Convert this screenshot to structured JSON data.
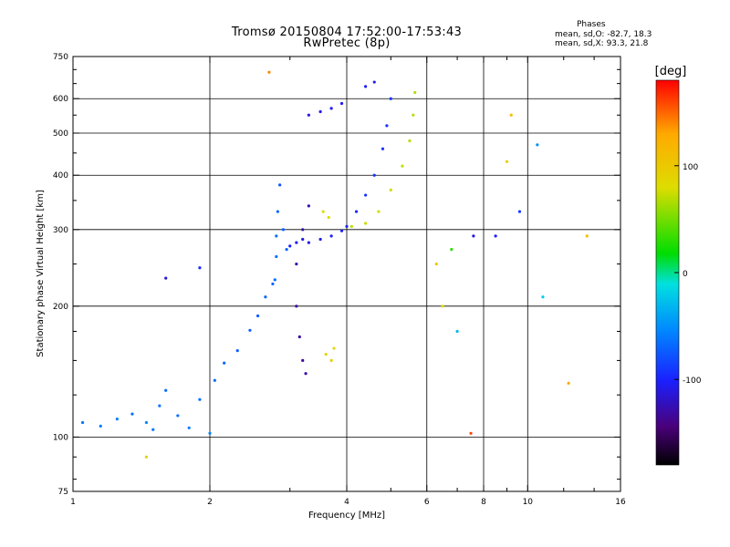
{
  "header": {
    "title_line1": "Tromsø 20150804 17:52:00-17:53:43",
    "title_line2": "RwPretec (8p)",
    "phases_heading": "Phases",
    "phases_o": "mean, sd,O: -82.7, 18.3",
    "phases_x": "mean, sd,X:  93.3, 21.8"
  },
  "colorbar": {
    "unit_label": "[deg]",
    "ticks": [
      {
        "value": 100,
        "label": "100"
      },
      {
        "value": 0,
        "label": "0"
      },
      {
        "value": -100,
        "label": "-100"
      }
    ],
    "range": [
      -180,
      180
    ]
  },
  "chart_data": {
    "type": "scatter",
    "title": "Tromsø 20150804 17:52:00-17:53:43",
    "subtitle": "RwPretec (8p)",
    "xlabel": "Frequency [MHz]",
    "ylabel": "Stationary phase Virtual Height [km]",
    "x_scale": "log",
    "y_scale": "log",
    "xlim": [
      1,
      16
    ],
    "ylim": [
      75,
      750
    ],
    "x_ticks": [
      {
        "value": 1,
        "label": "1"
      },
      {
        "value": 2,
        "label": "2"
      },
      {
        "value": 4,
        "label": "4"
      },
      {
        "value": 6,
        "label": "6"
      },
      {
        "value": 8,
        "label": "8"
      },
      {
        "value": 10,
        "label": "10"
      },
      {
        "value": 16,
        "label": "16"
      }
    ],
    "x_gridlines": [
      2,
      4,
      6,
      8,
      10
    ],
    "x_minor": [
      3,
      5,
      7,
      9,
      12,
      14
    ],
    "y_ticks": [
      {
        "value": 75,
        "label": "75"
      },
      {
        "value": 100,
        "label": "100"
      },
      {
        "value": 200,
        "label": "200"
      },
      {
        "value": 300,
        "label": "300"
      },
      {
        "value": 400,
        "label": "400"
      },
      {
        "value": 500,
        "label": "500"
      },
      {
        "value": 600,
        "label": "600"
      },
      {
        "value": 750,
        "label": "750"
      }
    ],
    "y_gridlines": [
      100,
      200,
      300,
      400,
      500,
      600
    ],
    "color_quantity": "phase [deg]",
    "series": [
      {
        "points": [
          [
            1.05,
            108,
            -62
          ],
          [
            1.15,
            106,
            -60
          ],
          [
            1.25,
            110,
            -58
          ],
          [
            1.35,
            113,
            -65
          ],
          [
            1.45,
            108,
            -55
          ],
          [
            1.5,
            104,
            -60
          ],
          [
            1.55,
            118,
            -62
          ],
          [
            1.6,
            128,
            -66
          ],
          [
            1.7,
            112,
            -64
          ],
          [
            1.8,
            105,
            -60
          ],
          [
            1.9,
            122,
            -64
          ],
          [
            2.0,
            102,
            -58
          ],
          [
            2.05,
            135,
            -66
          ],
          [
            2.15,
            148,
            -70
          ],
          [
            2.3,
            158,
            -72
          ],
          [
            2.45,
            176,
            -72
          ],
          [
            2.55,
            190,
            -74
          ],
          [
            2.65,
            210,
            -70
          ],
          [
            2.75,
            225,
            -72
          ]
        ]
      },
      {
        "points": [
          [
            2.78,
            230,
            -66
          ],
          [
            2.8,
            260,
            -64
          ],
          [
            2.8,
            290,
            -64
          ],
          [
            2.82,
            330,
            -70
          ],
          [
            2.85,
            380,
            -76
          ],
          [
            2.9,
            300,
            -72
          ],
          [
            2.95,
            270,
            -70
          ]
        ]
      },
      {
        "points": [
          [
            3.0,
            275,
            -100
          ],
          [
            3.1,
            280,
            -104
          ],
          [
            3.2,
            285,
            -110
          ],
          [
            3.3,
            280,
            -108
          ],
          [
            3.5,
            285,
            -106
          ],
          [
            3.7,
            290,
            -104
          ],
          [
            3.9,
            298,
            -100
          ],
          [
            4.0,
            305,
            -98
          ],
          [
            4.2,
            330,
            -96
          ],
          [
            4.4,
            360,
            -94
          ],
          [
            4.6,
            400,
            -92
          ],
          [
            4.8,
            460,
            -92
          ],
          [
            4.9,
            520,
            -92
          ],
          [
            5.0,
            600,
            -92
          ]
        ]
      },
      {
        "points": [
          [
            3.1,
            200,
            -130
          ],
          [
            3.15,
            170,
            -132
          ],
          [
            3.2,
            150,
            -134
          ],
          [
            3.25,
            140,
            -130
          ],
          [
            3.1,
            250,
            -128
          ],
          [
            3.2,
            300,
            -126
          ],
          [
            3.3,
            340,
            -128
          ]
        ]
      },
      {
        "points": [
          [
            3.6,
            155,
            86
          ],
          [
            3.7,
            150,
            90
          ],
          [
            3.75,
            160,
            84
          ],
          [
            3.55,
            330,
            78
          ],
          [
            3.65,
            320,
            80
          ],
          [
            4.1,
            305,
            72
          ],
          [
            4.4,
            310,
            74
          ],
          [
            4.7,
            330,
            76
          ],
          [
            5.0,
            370,
            74
          ],
          [
            5.3,
            420,
            72
          ],
          [
            5.5,
            480,
            70
          ],
          [
            5.6,
            550,
            68
          ],
          [
            5.65,
            620,
            66
          ]
        ]
      },
      {
        "points": [
          [
            3.3,
            550,
            -110
          ],
          [
            3.5,
            560,
            -108
          ],
          [
            3.7,
            570,
            -106
          ],
          [
            3.9,
            585,
            -104
          ],
          [
            4.4,
            640,
            -104
          ],
          [
            4.6,
            655,
            -108
          ],
          [
            1.6,
            232,
            -112
          ],
          [
            1.9,
            245,
            -96
          ]
        ]
      },
      {
        "points": [
          [
            6.8,
            270,
            30
          ],
          [
            6.3,
            250,
            100
          ],
          [
            6.5,
            200,
            80
          ],
          [
            7.0,
            175,
            -30
          ],
          [
            7.5,
            102,
            160
          ],
          [
            7.6,
            290,
            -110
          ],
          [
            8.5,
            290,
            -100
          ],
          [
            9.0,
            430,
            90
          ],
          [
            9.2,
            550,
            110
          ],
          [
            9.6,
            330,
            -90
          ],
          [
            10.5,
            470,
            -50
          ],
          [
            10.8,
            210,
            -20
          ],
          [
            12.3,
            133,
            130
          ],
          [
            13.5,
            290,
            110
          ],
          [
            2.7,
            690,
            140
          ],
          [
            1.45,
            90,
            90
          ]
        ]
      }
    ],
    "grid": true,
    "legend": "colorbar-right"
  }
}
